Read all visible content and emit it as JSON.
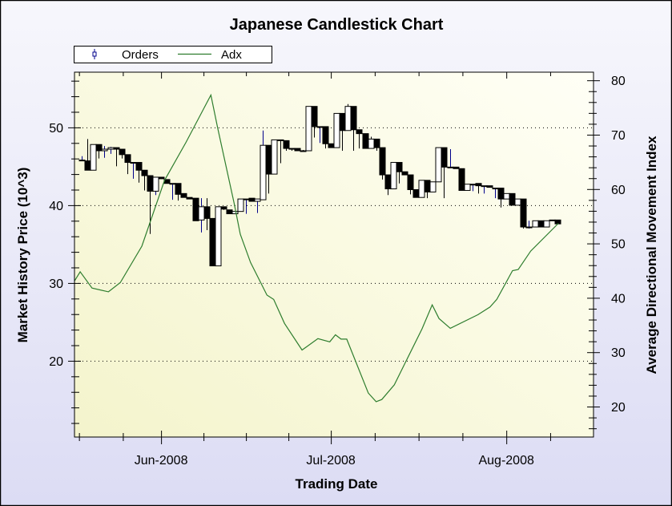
{
  "chart_data": {
    "type": "candlestick",
    "title": "Japanese Candlestick Chart",
    "xlabel": "Trading Date",
    "ylabel": "Market History Price (10^3)",
    "y2label": "Average Directional Movement Index",
    "x_unit": "days since 2008-06-01",
    "xlim": [
      -15.3,
      76.4
    ],
    "ylim": [
      10.2,
      57.1
    ],
    "y2lim": [
      14.4,
      81.5
    ],
    "yticks": [
      20,
      30,
      40,
      50
    ],
    "y2ticks": [
      20,
      30,
      40,
      50,
      60,
      70,
      80
    ],
    "xticks": [
      {
        "day": 0,
        "label": "Jun-2008"
      },
      {
        "day": 30,
        "label": "Jul-2008"
      },
      {
        "day": 61,
        "label": "Aug-2008"
      }
    ],
    "grid": true,
    "legend": {
      "placement": "top-left",
      "entries": [
        "Orders",
        "Adx"
      ]
    },
    "colors": {
      "up_wick": "#00008b",
      "down": "#000000",
      "adx": "#2e7d2e"
    },
    "candles": {
      "name": "Orders",
      "start_day": -14,
      "ohlc": [
        [
          45.8,
          46.3,
          45.8,
          45.8
        ],
        [
          45.7,
          48.5,
          44.5,
          44.5
        ],
        [
          44.5,
          47.8,
          44.5,
          47.8
        ],
        [
          47.8,
          47.8,
          46.0,
          47.0
        ],
        [
          47.0,
          47.6,
          46.1,
          47.2
        ],
        [
          47.2,
          47.5,
          46.6,
          47.4
        ],
        [
          47.4,
          47.4,
          45.0,
          47.2
        ],
        [
          47.2,
          47.2,
          46.0,
          46.5
        ],
        [
          46.5,
          46.5,
          44.0,
          45.5
        ],
        [
          45.5,
          45.5,
          43.4,
          45.5
        ],
        [
          45.5,
          45.5,
          42.9,
          44.5
        ],
        [
          44.5,
          44.5,
          41.9,
          43.8
        ],
        [
          43.8,
          43.8,
          36.3,
          41.8
        ],
        [
          41.8,
          43.6,
          41.3,
          43.6
        ],
        [
          43.6,
          43.6,
          43.4,
          43.4
        ],
        [
          43.3,
          43.3,
          42.8,
          42.8
        ],
        [
          42.8,
          42.8,
          40.7,
          42.8
        ],
        [
          42.8,
          42.8,
          40.6,
          41.4
        ],
        [
          41.5,
          41.5,
          41.0,
          41.0
        ],
        [
          41.0,
          41.0,
          40.8,
          40.8
        ],
        [
          40.9,
          40.9,
          38.0,
          38.0
        ],
        [
          38.1,
          40.9,
          36.5,
          39.8
        ],
        [
          39.8,
          40.9,
          36.8,
          38.3
        ],
        [
          38.3,
          38.3,
          32.2,
          32.2
        ],
        [
          32.2,
          39.8,
          32.2,
          39.8
        ],
        [
          39.8,
          39.8,
          39.4,
          39.5
        ],
        [
          39.4,
          39.4,
          38.9,
          38.9
        ],
        [
          38.9,
          39.2,
          38.9,
          39.2
        ],
        [
          39.2,
          40.8,
          39.2,
          40.8
        ],
        [
          40.8,
          40.8,
          38.9,
          40.8
        ],
        [
          40.9,
          40.9,
          40.5,
          40.5
        ],
        [
          40.5,
          40.8,
          39.0,
          40.8
        ],
        [
          40.7,
          49.6,
          40.7,
          47.7
        ],
        [
          47.7,
          47.7,
          41.5,
          44.0
        ],
        [
          44.0,
          48.4,
          44.0,
          48.4
        ],
        [
          48.4,
          48.4,
          45.4,
          48.3
        ],
        [
          48.3,
          48.3,
          47.0,
          47.3
        ],
        [
          47.3,
          47.3,
          47.0,
          47.3
        ],
        [
          47.3,
          47.3,
          47.0,
          47.0
        ],
        [
          47.0,
          47.1,
          46.9,
          47.0
        ],
        [
          47.0,
          52.7,
          47.0,
          52.7
        ],
        [
          52.7,
          52.7,
          48.7,
          50.1
        ],
        [
          50.1,
          50.1,
          48.0,
          50.1
        ],
        [
          50.1,
          50.1,
          47.3,
          47.9
        ],
        [
          47.9,
          47.9,
          47.4,
          47.4
        ],
        [
          47.4,
          51.8,
          47.4,
          51.8
        ],
        [
          51.8,
          51.8,
          47.0,
          49.6
        ],
        [
          49.6,
          53.0,
          49.6,
          52.7
        ],
        [
          52.7,
          52.7,
          47.0,
          49.7
        ],
        [
          49.7,
          49.7,
          47.3,
          49.2
        ],
        [
          49.2,
          49.2,
          47.3,
          47.3
        ],
        [
          47.3,
          48.8,
          47.3,
          48.5
        ],
        [
          48.5,
          48.5,
          47.0,
          47.4
        ],
        [
          47.4,
          47.4,
          43.3,
          43.9
        ],
        [
          43.9,
          43.9,
          41.3,
          42.1
        ],
        [
          42.1,
          45.5,
          42.1,
          45.5
        ],
        [
          45.5,
          45.5,
          42.8,
          44.3
        ],
        [
          44.3,
          44.3,
          43.9,
          43.9
        ],
        [
          43.9,
          43.9,
          41.4,
          42.0
        ],
        [
          42.0,
          42.0,
          41.0,
          41.0
        ],
        [
          41.0,
          43.2,
          41.0,
          43.2
        ],
        [
          43.2,
          43.2,
          40.9,
          41.7
        ],
        [
          41.7,
          43.0,
          41.7,
          43.0
        ],
        [
          43.0,
          47.4,
          43.0,
          47.4
        ],
        [
          47.4,
          47.4,
          40.9,
          44.9
        ],
        [
          44.9,
          47.2,
          44.9,
          44.9
        ],
        [
          44.9,
          44.9,
          44.7,
          44.7
        ],
        [
          44.7,
          44.7,
          41.9,
          41.9
        ],
        [
          41.9,
          42.7,
          41.9,
          42.7
        ],
        [
          42.7,
          42.7,
          41.8,
          42.7
        ],
        [
          42.8,
          42.8,
          41.5,
          42.5
        ],
        [
          42.5,
          42.5,
          41.5,
          42.5
        ],
        [
          42.5,
          42.5,
          42.3,
          42.3
        ],
        [
          42.2,
          42.2,
          40.9,
          42.2
        ],
        [
          42.2,
          42.2,
          39.7,
          40.8
        ],
        [
          40.8,
          41.5,
          40.8,
          41.5
        ],
        [
          41.5,
          41.5,
          40.0,
          40.0
        ],
        [
          40.0,
          40.8,
          40.0,
          40.8
        ],
        [
          40.8,
          40.8,
          37.0,
          37.2
        ],
        [
          37.2,
          38.0,
          37.0,
          37.2
        ],
        [
          37.2,
          38.0,
          37.2,
          38.0
        ],
        [
          38.0,
          38.0,
          37.2,
          37.2
        ],
        [
          37.2,
          38.0,
          37.2,
          38.0
        ],
        [
          38.1,
          38.1,
          38.1,
          38.1
        ],
        [
          38.1,
          38.1,
          37.6,
          37.6
        ]
      ]
    },
    "adx": {
      "name": "Adx",
      "points": [
        [
          -15.3,
          43.1
        ],
        [
          -14.3,
          44.8
        ],
        [
          -12.2,
          41.8
        ],
        [
          -9.3,
          41.1
        ],
        [
          -7.2,
          42.8
        ],
        [
          -3.4,
          49.5
        ],
        [
          0.6,
          61.6
        ],
        [
          4.4,
          68.6
        ],
        [
          8.8,
          77.3
        ],
        [
          10.0,
          71.2
        ],
        [
          12.9,
          57.4
        ],
        [
          14.0,
          51.7
        ],
        [
          15.8,
          46.5
        ],
        [
          18.7,
          40.5
        ],
        [
          19.9,
          39.7
        ],
        [
          21.8,
          35.3
        ],
        [
          24.9,
          30.4
        ],
        [
          27.7,
          32.5
        ],
        [
          29.8,
          31.9
        ],
        [
          30.8,
          33.2
        ],
        [
          31.8,
          32.4
        ],
        [
          32.8,
          32.4
        ],
        [
          36.6,
          22.5
        ],
        [
          38.0,
          20.9
        ],
        [
          39.0,
          21.3
        ],
        [
          41.2,
          24.0
        ],
        [
          46.1,
          34.3
        ],
        [
          47.9,
          38.7
        ],
        [
          49.1,
          36.2
        ],
        [
          51.1,
          34.4
        ],
        [
          56.0,
          36.9
        ],
        [
          58.1,
          38.3
        ],
        [
          59.3,
          39.7
        ],
        [
          62.1,
          45.0
        ],
        [
          63.1,
          45.2
        ],
        [
          65.3,
          48.6
        ],
        [
          70.2,
          53.7
        ]
      ]
    }
  }
}
